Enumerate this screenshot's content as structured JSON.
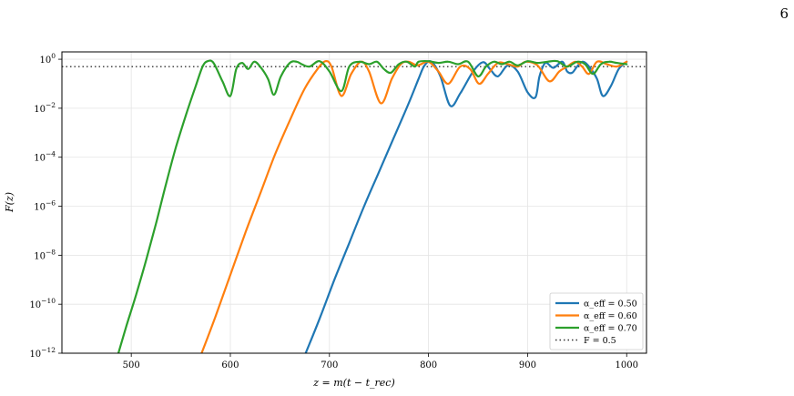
{
  "page_number": "6",
  "chart_data": {
    "type": "line",
    "title": "",
    "xlabel": "z = m(t − t_rec)",
    "ylabel": "F(z)",
    "xlim": [
      430,
      1020
    ],
    "ylim_log10": [
      -12,
      0.3
    ],
    "y_scale": "log",
    "grid": true,
    "legend_position": "lower right",
    "x_ticks": [
      500,
      600,
      700,
      800,
      900,
      1000
    ],
    "x_tick_labels": [
      "500",
      "600",
      "700",
      "800",
      "900",
      "1000"
    ],
    "y_ticks_exp": [
      0,
      -2,
      -4,
      -6,
      -8,
      -10,
      -12
    ],
    "y_tick_labels": [
      "10^0",
      "10^−2",
      "10^−4",
      "10^−6",
      "10^−8",
      "10^−10",
      "10^−12"
    ],
    "threshold": {
      "label": "F = 0.5",
      "value": 0.5,
      "style": "dotted",
      "color": "#333333"
    },
    "series": [
      {
        "name": "α_eff = 0.50",
        "color": "#1f77b4",
        "x": [
          676,
          690,
          705,
          720,
          735,
          750,
          765,
          780,
          790,
          796,
          803,
          812,
          822,
          832,
          845,
          855,
          862,
          870,
          880,
          890,
          900,
          908,
          912,
          918,
          926,
          935,
          940,
          945,
          950,
          956,
          963,
          970,
          976,
          984,
          992,
          1000
        ],
        "log10F": [
          -12,
          -10.6,
          -9.0,
          -7.5,
          -6.0,
          -4.6,
          -3.2,
          -1.8,
          -0.8,
          -0.25,
          -0.1,
          -0.7,
          -1.9,
          -1.4,
          -0.5,
          -0.12,
          -0.4,
          -0.7,
          -0.25,
          -0.5,
          -1.35,
          -1.55,
          -0.7,
          -0.15,
          -0.35,
          -0.1,
          -0.5,
          -0.55,
          -0.3,
          -0.1,
          -0.35,
          -0.8,
          -1.5,
          -1.1,
          -0.4,
          -0.1
        ]
      },
      {
        "name": "α_eff = 0.60",
        "color": "#ff7f0e",
        "x": [
          571,
          585,
          600,
          615,
          630,
          645,
          660,
          675,
          688,
          696,
          702,
          712,
          722,
          732,
          740,
          752,
          763,
          772,
          780,
          789,
          800,
          810,
          820,
          832,
          842,
          851,
          860,
          870,
          880,
          890,
          898,
          910,
          922,
          932,
          940,
          948,
          955,
          962,
          970,
          980,
          990,
          1000
        ],
        "log10F": [
          -12,
          -10.5,
          -8.8,
          -7.1,
          -5.5,
          -3.9,
          -2.5,
          -1.2,
          -0.4,
          -0.08,
          -0.3,
          -1.5,
          -0.6,
          -0.1,
          -0.5,
          -1.8,
          -0.8,
          -0.2,
          -0.1,
          -0.25,
          -0.1,
          -0.5,
          -1.0,
          -0.3,
          -0.4,
          -1.0,
          -0.6,
          -0.15,
          -0.2,
          -0.3,
          -0.1,
          -0.25,
          -0.9,
          -0.5,
          -0.3,
          -0.1,
          -0.3,
          -0.6,
          -0.1,
          -0.2,
          -0.3,
          -0.1
        ]
      },
      {
        "name": "α_eff = 0.70",
        "color": "#2ca02c",
        "x": [
          487,
          495,
          505,
          515,
          525,
          535,
          545,
          555,
          565,
          572,
          577,
          583,
          592,
          600,
          606,
          612,
          618,
          624,
          630,
          638,
          644,
          651,
          660,
          667,
          672,
          680,
          690,
          700,
          712,
          720,
          730,
          740,
          748,
          755,
          762,
          770,
          778,
          786,
          790,
          800,
          810,
          820,
          830,
          840,
          850,
          858,
          866,
          874,
          882,
          890,
          900,
          910,
          920,
          930,
          940,
          950,
          958,
          966,
          974,
          982,
          990,
          1000
        ],
        "log10F": [
          -12,
          -10.9,
          -9.6,
          -8.2,
          -6.7,
          -5.1,
          -3.6,
          -2.3,
          -1.1,
          -0.3,
          -0.08,
          -0.15,
          -0.9,
          -1.5,
          -0.4,
          -0.15,
          -0.4,
          -0.1,
          -0.3,
          -0.8,
          -1.45,
          -0.7,
          -0.15,
          -0.1,
          -0.2,
          -0.3,
          -0.08,
          -0.5,
          -1.3,
          -0.3,
          -0.1,
          -0.2,
          -0.1,
          -0.4,
          -0.55,
          -0.2,
          -0.1,
          -0.3,
          -0.1,
          -0.08,
          -0.15,
          -0.1,
          -0.2,
          -0.1,
          -0.7,
          -0.3,
          -0.1,
          -0.2,
          -0.1,
          -0.25,
          -0.08,
          -0.15,
          -0.1,
          -0.08,
          -0.3,
          -0.1,
          -0.2,
          -0.6,
          -0.2,
          -0.1,
          -0.15,
          -0.2
        ]
      }
    ]
  }
}
